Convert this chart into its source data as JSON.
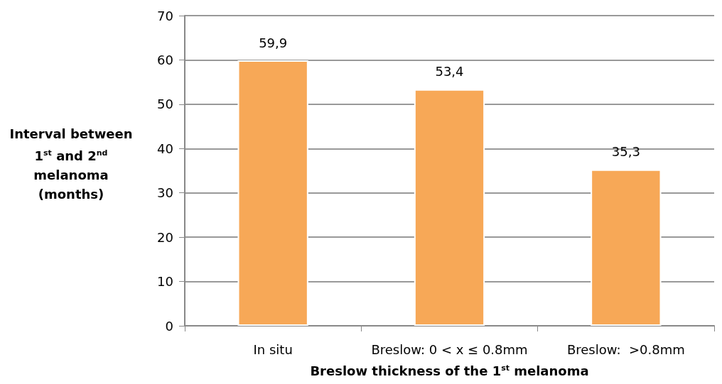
{
  "chart_data": {
    "type": "bar",
    "xlabel": "Breslow thickness of the 1$^{st}$ melanoma",
    "ylabel": "Interval between 1$^{st}$ and 2$^{nd}$ melanoma (months)",
    "categories": [
      "In situ",
      "Breslow: 0 < x ≤ 0.8mm",
      "Breslow:  >0.8mm"
    ],
    "values": [
      59.9,
      53.4,
      35.3
    ],
    "value_labels": [
      "59,9",
      "53,4",
      "35,3"
    ],
    "color": "#f7a857",
    "ylim": [
      0,
      70
    ],
    "yticks": [
      0,
      10,
      20,
      30,
      40,
      50,
      60,
      70
    ],
    "grid": "y"
  }
}
